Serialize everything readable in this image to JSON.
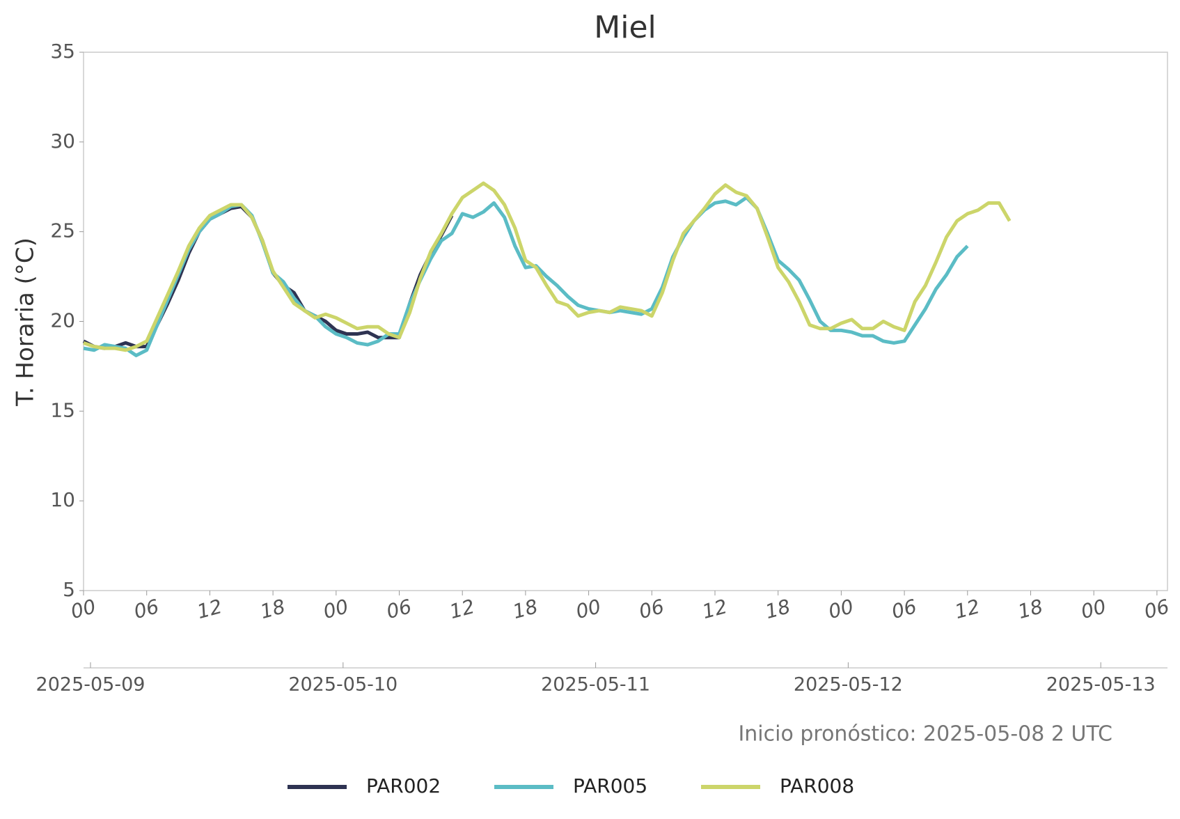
{
  "chart_data": {
    "type": "line",
    "title": "Miel",
    "ylabel": "T. Horaria (°C)",
    "annotation": "Inicio pronóstico: 2025-05-08 2 UTC",
    "x": [
      "2025-05-09 00",
      "2025-05-09 01",
      "2025-05-09 02",
      "2025-05-09 03",
      "2025-05-09 04",
      "2025-05-09 05",
      "2025-05-09 06",
      "2025-05-09 07",
      "2025-05-09 08",
      "2025-05-09 09",
      "2025-05-09 10",
      "2025-05-09 11",
      "2025-05-09 12",
      "2025-05-09 13",
      "2025-05-09 14",
      "2025-05-09 15",
      "2025-05-09 16",
      "2025-05-09 17",
      "2025-05-09 18",
      "2025-05-09 19",
      "2025-05-09 20",
      "2025-05-09 21",
      "2025-05-09 22",
      "2025-05-09 23",
      "2025-05-10 00",
      "2025-05-10 01",
      "2025-05-10 02",
      "2025-05-10 03",
      "2025-05-10 04",
      "2025-05-10 05",
      "2025-05-10 06",
      "2025-05-10 07",
      "2025-05-10 08",
      "2025-05-10 09",
      "2025-05-10 10",
      "2025-05-10 11",
      "2025-05-10 12",
      "2025-05-10 13",
      "2025-05-10 14",
      "2025-05-10 15",
      "2025-05-10 16",
      "2025-05-10 17",
      "2025-05-10 18",
      "2025-05-10 19",
      "2025-05-10 20",
      "2025-05-10 21",
      "2025-05-10 22",
      "2025-05-10 23",
      "2025-05-11 00",
      "2025-05-11 01",
      "2025-05-11 02",
      "2025-05-11 03",
      "2025-05-11 04",
      "2025-05-11 05",
      "2025-05-11 06",
      "2025-05-11 07",
      "2025-05-11 08",
      "2025-05-11 09",
      "2025-05-11 10",
      "2025-05-11 11",
      "2025-05-11 12",
      "2025-05-11 13",
      "2025-05-11 14",
      "2025-05-11 15",
      "2025-05-11 16",
      "2025-05-11 17",
      "2025-05-11 18",
      "2025-05-11 19",
      "2025-05-11 20",
      "2025-05-11 21",
      "2025-05-11 22",
      "2025-05-11 23",
      "2025-05-12 00",
      "2025-05-12 01",
      "2025-05-12 02",
      "2025-05-12 03",
      "2025-05-12 04",
      "2025-05-12 05",
      "2025-05-12 06",
      "2025-05-12 07",
      "2025-05-12 08",
      "2025-05-12 09",
      "2025-05-12 10",
      "2025-05-12 11",
      "2025-05-12 12",
      "2025-05-12 13",
      "2025-05-12 14",
      "2025-05-12 15",
      "2025-05-12 16"
    ],
    "series": [
      {
        "name": "PAR002",
        "color": "#2e3352",
        "values": [
          18.9,
          18.6,
          18.5,
          18.6,
          18.8,
          18.6,
          18.6,
          19.8,
          21.0,
          22.3,
          23.8,
          25.0,
          25.7,
          26.0,
          26.3,
          26.4,
          25.8,
          24.5,
          22.7,
          22.0,
          21.6,
          20.6,
          20.3,
          20.0,
          19.5,
          19.3,
          19.3,
          19.4,
          19.1,
          19.1,
          19.1,
          21.0,
          22.6,
          23.8,
          24.8,
          25.9,
          null,
          null,
          null,
          null,
          null,
          null,
          null,
          null,
          null,
          null,
          null,
          null,
          null,
          null,
          null,
          null,
          null,
          null,
          null,
          null,
          null,
          null,
          null,
          null,
          null,
          null,
          null,
          null,
          null,
          null,
          null,
          null,
          null,
          null,
          null,
          null,
          null,
          null,
          null,
          null,
          null,
          null,
          null,
          null,
          null,
          null,
          null,
          null,
          null,
          null,
          null,
          null,
          null
        ]
      },
      {
        "name": "PAR005",
        "color": "#5bbcc5",
        "values": [
          18.5,
          18.4,
          18.7,
          18.6,
          18.5,
          18.1,
          18.4,
          19.8,
          21.2,
          22.6,
          24.0,
          25.0,
          25.7,
          26.0,
          26.4,
          26.5,
          25.9,
          24.4,
          22.7,
          22.2,
          21.3,
          20.6,
          20.3,
          19.7,
          19.3,
          19.1,
          18.8,
          18.7,
          18.9,
          19.3,
          19.3,
          21.0,
          22.3,
          23.5,
          24.5,
          24.9,
          26.0,
          25.8,
          26.1,
          26.6,
          25.8,
          24.2,
          23.0,
          23.1,
          22.5,
          22.0,
          21.4,
          20.9,
          20.7,
          20.6,
          20.5,
          20.6,
          20.5,
          20.4,
          20.7,
          21.9,
          23.6,
          24.7,
          25.6,
          26.2,
          26.6,
          26.7,
          26.5,
          26.9,
          26.3,
          24.9,
          23.4,
          22.9,
          22.3,
          21.2,
          20.0,
          19.5,
          19.5,
          19.4,
          19.2,
          19.2,
          18.9,
          18.8,
          18.9,
          19.8,
          20.7,
          21.8,
          22.6,
          23.6,
          24.2,
          null,
          null,
          null,
          null
        ]
      },
      {
        "name": "PAR008",
        "color": "#ccd56a",
        "values": [
          18.8,
          18.6,
          18.5,
          18.5,
          18.4,
          18.6,
          18.9,
          20.2,
          21.5,
          22.8,
          24.2,
          25.2,
          25.9,
          26.2,
          26.5,
          26.5,
          25.8,
          24.5,
          22.8,
          21.9,
          21.0,
          20.6,
          20.2,
          20.4,
          20.2,
          19.9,
          19.6,
          19.7,
          19.7,
          19.3,
          19.1,
          20.5,
          22.4,
          23.9,
          24.9,
          26.0,
          26.9,
          27.3,
          27.7,
          27.3,
          26.5,
          25.2,
          23.4,
          23.0,
          22.0,
          21.1,
          20.9,
          20.3,
          20.5,
          20.6,
          20.5,
          20.8,
          20.7,
          20.6,
          20.3,
          21.6,
          23.4,
          24.9,
          25.6,
          26.3,
          27.1,
          27.6,
          27.2,
          27.0,
          26.3,
          24.7,
          23.0,
          22.2,
          21.1,
          19.8,
          19.6,
          19.6,
          19.9,
          20.1,
          19.6,
          19.6,
          20.0,
          19.7,
          19.5,
          21.1,
          22.0,
          23.3,
          24.7,
          25.6,
          26.0,
          26.2,
          26.6,
          26.6,
          25.6
        ]
      }
    ],
    "xlim": [
      "2025-05-09 00",
      "2025-05-13 07"
    ],
    "xticks": [
      {
        "value": "2025-05-09 00",
        "label": "00"
      },
      {
        "value": "2025-05-09 06",
        "label": "06"
      },
      {
        "value": "2025-05-09 12",
        "label": "12"
      },
      {
        "value": "2025-05-09 18",
        "label": "18"
      },
      {
        "value": "2025-05-10 00",
        "label": "00"
      },
      {
        "value": "2025-05-10 06",
        "label": "06"
      },
      {
        "value": "2025-05-10 12",
        "label": "12"
      },
      {
        "value": "2025-05-10 18",
        "label": "18"
      },
      {
        "value": "2025-05-11 00",
        "label": "00"
      },
      {
        "value": "2025-05-11 06",
        "label": "06"
      },
      {
        "value": "2025-05-11 12",
        "label": "12"
      },
      {
        "value": "2025-05-11 18",
        "label": "18"
      },
      {
        "value": "2025-05-12 00",
        "label": "00"
      },
      {
        "value": "2025-05-12 06",
        "label": "06"
      },
      {
        "value": "2025-05-12 12",
        "label": "12"
      },
      {
        "value": "2025-05-12 18",
        "label": "18"
      },
      {
        "value": "2025-05-13 00",
        "label": "00"
      },
      {
        "value": "2025-05-13 06",
        "label": "06"
      }
    ],
    "date_ticks": [
      {
        "value": "2025-05-09 00",
        "label": "2025-05-09"
      },
      {
        "value": "2025-05-10 00",
        "label": "2025-05-10"
      },
      {
        "value": "2025-05-11 00",
        "label": "2025-05-11"
      },
      {
        "value": "2025-05-12 00",
        "label": "2025-05-12"
      },
      {
        "value": "2025-05-13 00",
        "label": "2025-05-13"
      }
    ],
    "ylim": [
      5,
      35
    ],
    "yticks": [
      5,
      10,
      15,
      20,
      25,
      30,
      35
    ],
    "grid": false,
    "legend": "bottom"
  }
}
